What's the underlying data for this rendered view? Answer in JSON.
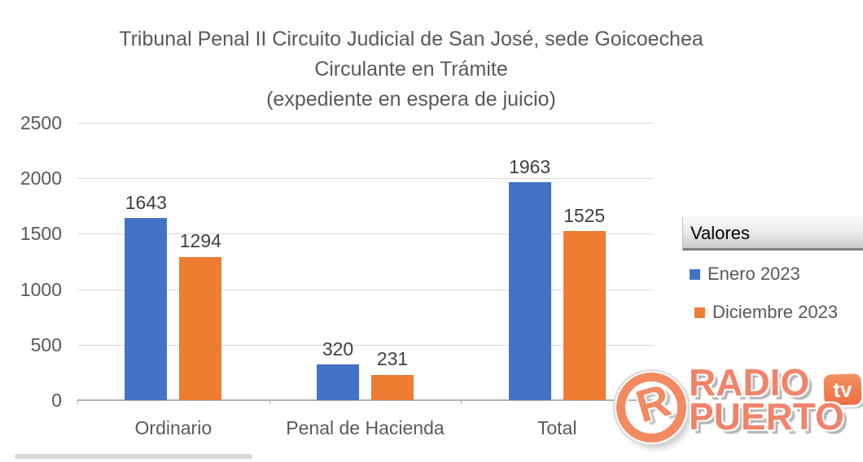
{
  "title": {
    "line1": "Tribunal Penal II Circuito Judicial de San José, sede Goicoechea",
    "line2": "Circulante en Trámite",
    "line3": "(expediente en espera de juicio)"
  },
  "chart_data": {
    "type": "bar",
    "categories": [
      "Ordinario",
      "Penal de Hacienda",
      "Total"
    ],
    "series": [
      {
        "name": "Enero 2023",
        "color": "#4472C4",
        "values": [
          1643,
          320,
          1963
        ]
      },
      {
        "name": "Diciembre 2023",
        "color": "#ED7D31",
        "values": [
          1294,
          231,
          1525
        ]
      }
    ],
    "ylim": [
      0,
      2500
    ],
    "yticks": [
      0,
      500,
      1000,
      1500,
      2000,
      2500
    ],
    "grid": true,
    "data_labels": true,
    "legend_title": "Valores",
    "legend_position": "right"
  },
  "legend": {
    "title": "Valores",
    "items": [
      {
        "label": "Enero 2023",
        "color": "#4472C4"
      },
      {
        "label": "Diciembre 2023",
        "color": "#ED7D31"
      }
    ]
  },
  "watermark": {
    "monogram": "R",
    "line1": "RADIO",
    "line2": "PUERTO",
    "badge": "tv",
    "color": "#F0846B"
  },
  "colors": {
    "series1": "#4472C4",
    "series2": "#ED7D31",
    "gridline": "#D9D9D9",
    "axis_line": "#B0B0B0",
    "axis_text": "#595959",
    "data_label_text": "#404040"
  }
}
